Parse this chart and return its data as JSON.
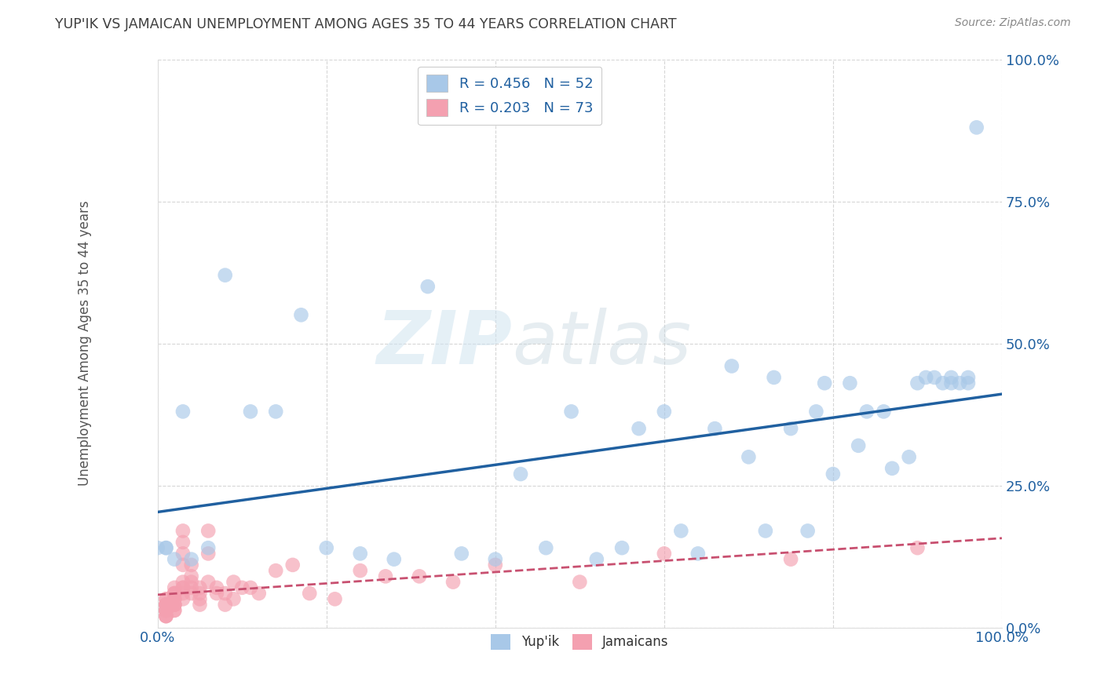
{
  "title": "YUP'IK VS JAMAICAN UNEMPLOYMENT AMONG AGES 35 TO 44 YEARS CORRELATION CHART",
  "source": "Source: ZipAtlas.com",
  "ylabel": "Unemployment Among Ages 35 to 44 years",
  "xlim": [
    0.0,
    1.0
  ],
  "ylim": [
    0.0,
    1.0
  ],
  "xticks": [
    0.0,
    0.2,
    0.4,
    0.6,
    0.8,
    1.0
  ],
  "yticks": [
    0.0,
    0.25,
    0.5,
    0.75,
    1.0
  ],
  "xtick_labels": [
    "0.0%",
    "",
    "",
    "",
    "",
    "100.0%"
  ],
  "ytick_labels_right": [
    "0.0%",
    "25.0%",
    "50.0%",
    "75.0%",
    "100.0%"
  ],
  "watermark_zip": "ZIP",
  "watermark_atlas": "atlas",
  "legend_r_yupik": "R = 0.456",
  "legend_n_yupik": "N = 52",
  "legend_r_jamaican": "R = 0.203",
  "legend_n_jamaican": "N = 73",
  "color_yupik": "#a8c8e8",
  "color_jamaican": "#f4a0b0",
  "color_line_yupik": "#2060a0",
  "color_line_jamaican": "#c85070",
  "yupik_x": [
    0.97,
    0.96,
    0.96,
    0.95,
    0.94,
    0.94,
    0.93,
    0.92,
    0.91,
    0.9,
    0.89,
    0.87,
    0.86,
    0.84,
    0.83,
    0.82,
    0.8,
    0.79,
    0.78,
    0.77,
    0.75,
    0.73,
    0.72,
    0.7,
    0.68,
    0.66,
    0.64,
    0.62,
    0.6,
    0.57,
    0.55,
    0.52,
    0.49,
    0.46,
    0.43,
    0.4,
    0.36,
    0.32,
    0.28,
    0.24,
    0.2,
    0.17,
    0.14,
    0.11,
    0.08,
    0.06,
    0.04,
    0.03,
    0.02,
    0.01,
    0.01,
    0.0
  ],
  "yupik_y": [
    0.88,
    0.43,
    0.44,
    0.43,
    0.44,
    0.43,
    0.43,
    0.44,
    0.44,
    0.43,
    0.3,
    0.28,
    0.38,
    0.38,
    0.32,
    0.43,
    0.27,
    0.43,
    0.38,
    0.17,
    0.35,
    0.44,
    0.17,
    0.3,
    0.46,
    0.35,
    0.13,
    0.17,
    0.38,
    0.35,
    0.14,
    0.12,
    0.38,
    0.14,
    0.27,
    0.12,
    0.13,
    0.6,
    0.12,
    0.13,
    0.14,
    0.55,
    0.38,
    0.38,
    0.62,
    0.14,
    0.12,
    0.38,
    0.12,
    0.14,
    0.14,
    0.14
  ],
  "jamaican_x": [
    0.01,
    0.01,
    0.01,
    0.01,
    0.01,
    0.01,
    0.01,
    0.01,
    0.01,
    0.01,
    0.01,
    0.01,
    0.01,
    0.01,
    0.01,
    0.01,
    0.01,
    0.02,
    0.02,
    0.02,
    0.02,
    0.02,
    0.02,
    0.02,
    0.02,
    0.02,
    0.02,
    0.02,
    0.02,
    0.02,
    0.03,
    0.03,
    0.03,
    0.03,
    0.03,
    0.03,
    0.03,
    0.03,
    0.03,
    0.04,
    0.04,
    0.04,
    0.04,
    0.04,
    0.05,
    0.05,
    0.05,
    0.05,
    0.06,
    0.06,
    0.06,
    0.07,
    0.07,
    0.08,
    0.08,
    0.09,
    0.09,
    0.1,
    0.11,
    0.12,
    0.14,
    0.16,
    0.18,
    0.21,
    0.24,
    0.27,
    0.31,
    0.35,
    0.4,
    0.5,
    0.6,
    0.75,
    0.9
  ],
  "jamaican_y": [
    0.02,
    0.03,
    0.04,
    0.03,
    0.04,
    0.05,
    0.03,
    0.02,
    0.04,
    0.03,
    0.05,
    0.03,
    0.04,
    0.03,
    0.04,
    0.02,
    0.03,
    0.04,
    0.05,
    0.06,
    0.07,
    0.05,
    0.06,
    0.04,
    0.03,
    0.05,
    0.04,
    0.06,
    0.04,
    0.03,
    0.05,
    0.06,
    0.07,
    0.11,
    0.15,
    0.17,
    0.13,
    0.07,
    0.08,
    0.07,
    0.08,
    0.09,
    0.06,
    0.11,
    0.04,
    0.06,
    0.05,
    0.07,
    0.08,
    0.13,
    0.17,
    0.06,
    0.07,
    0.04,
    0.06,
    0.05,
    0.08,
    0.07,
    0.07,
    0.06,
    0.1,
    0.11,
    0.06,
    0.05,
    0.1,
    0.09,
    0.09,
    0.08,
    0.11,
    0.08,
    0.13,
    0.12,
    0.14
  ],
  "background_color": "#ffffff",
  "grid_color": "#cccccc",
  "title_color": "#404040",
  "axis_label_color": "#555555",
  "tick_color": "#2060a0"
}
